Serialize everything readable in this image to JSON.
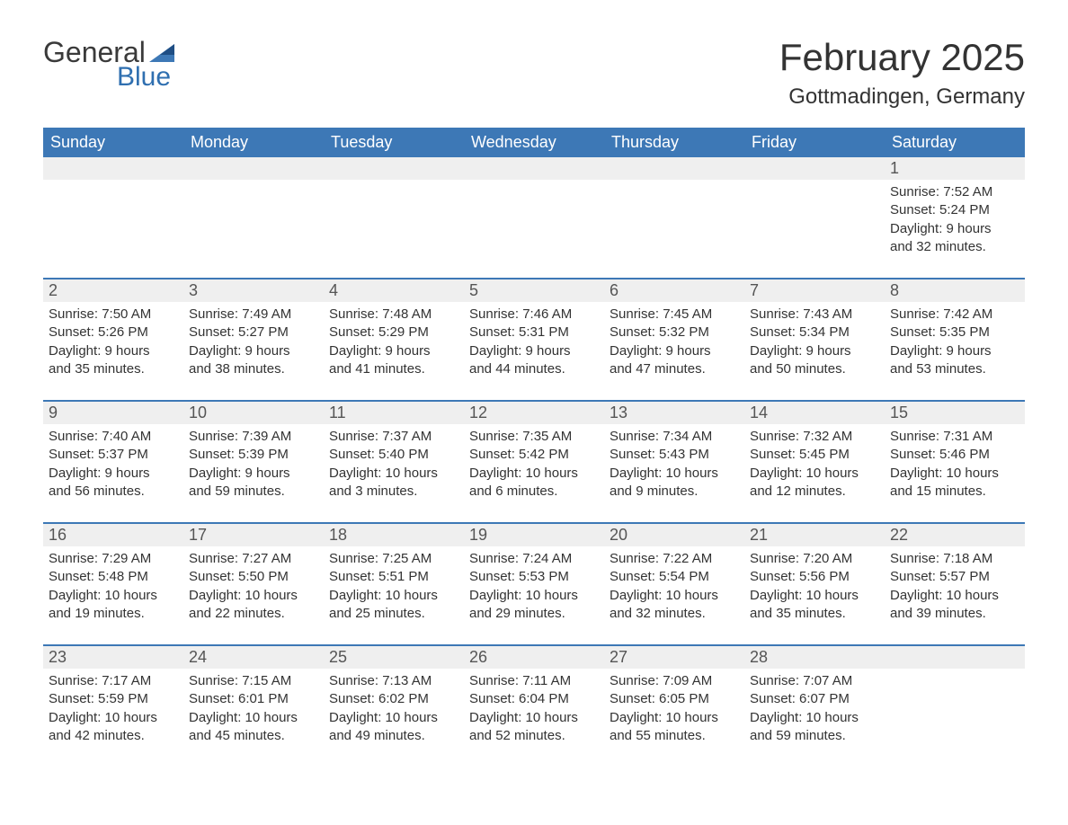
{
  "colors": {
    "brand_blue": "#3d78b6",
    "logo_blue": "#2f6fb0",
    "text": "#333333",
    "header_bg": "#3d78b6",
    "header_text": "#ffffff",
    "daynum_bg": "#efefef",
    "background": "#ffffff",
    "week_divider": "#3d78b6"
  },
  "logo": {
    "general": "General",
    "blue": "Blue"
  },
  "title": {
    "month": "February 2025",
    "location": "Gottmadingen, Germany"
  },
  "weekdays": [
    "Sunday",
    "Monday",
    "Tuesday",
    "Wednesday",
    "Thursday",
    "Friday",
    "Saturday"
  ],
  "weeks": [
    [
      null,
      null,
      null,
      null,
      null,
      null,
      {
        "n": "1",
        "sunrise": "Sunrise: 7:52 AM",
        "sunset": "Sunset: 5:24 PM",
        "daylight1": "Daylight: 9 hours",
        "daylight2": "and 32 minutes."
      }
    ],
    [
      {
        "n": "2",
        "sunrise": "Sunrise: 7:50 AM",
        "sunset": "Sunset: 5:26 PM",
        "daylight1": "Daylight: 9 hours",
        "daylight2": "and 35 minutes."
      },
      {
        "n": "3",
        "sunrise": "Sunrise: 7:49 AM",
        "sunset": "Sunset: 5:27 PM",
        "daylight1": "Daylight: 9 hours",
        "daylight2": "and 38 minutes."
      },
      {
        "n": "4",
        "sunrise": "Sunrise: 7:48 AM",
        "sunset": "Sunset: 5:29 PM",
        "daylight1": "Daylight: 9 hours",
        "daylight2": "and 41 minutes."
      },
      {
        "n": "5",
        "sunrise": "Sunrise: 7:46 AM",
        "sunset": "Sunset: 5:31 PM",
        "daylight1": "Daylight: 9 hours",
        "daylight2": "and 44 minutes."
      },
      {
        "n": "6",
        "sunrise": "Sunrise: 7:45 AM",
        "sunset": "Sunset: 5:32 PM",
        "daylight1": "Daylight: 9 hours",
        "daylight2": "and 47 minutes."
      },
      {
        "n": "7",
        "sunrise": "Sunrise: 7:43 AM",
        "sunset": "Sunset: 5:34 PM",
        "daylight1": "Daylight: 9 hours",
        "daylight2": "and 50 minutes."
      },
      {
        "n": "8",
        "sunrise": "Sunrise: 7:42 AM",
        "sunset": "Sunset: 5:35 PM",
        "daylight1": "Daylight: 9 hours",
        "daylight2": "and 53 minutes."
      }
    ],
    [
      {
        "n": "9",
        "sunrise": "Sunrise: 7:40 AM",
        "sunset": "Sunset: 5:37 PM",
        "daylight1": "Daylight: 9 hours",
        "daylight2": "and 56 minutes."
      },
      {
        "n": "10",
        "sunrise": "Sunrise: 7:39 AM",
        "sunset": "Sunset: 5:39 PM",
        "daylight1": "Daylight: 9 hours",
        "daylight2": "and 59 minutes."
      },
      {
        "n": "11",
        "sunrise": "Sunrise: 7:37 AM",
        "sunset": "Sunset: 5:40 PM",
        "daylight1": "Daylight: 10 hours",
        "daylight2": "and 3 minutes."
      },
      {
        "n": "12",
        "sunrise": "Sunrise: 7:35 AM",
        "sunset": "Sunset: 5:42 PM",
        "daylight1": "Daylight: 10 hours",
        "daylight2": "and 6 minutes."
      },
      {
        "n": "13",
        "sunrise": "Sunrise: 7:34 AM",
        "sunset": "Sunset: 5:43 PM",
        "daylight1": "Daylight: 10 hours",
        "daylight2": "and 9 minutes."
      },
      {
        "n": "14",
        "sunrise": "Sunrise: 7:32 AM",
        "sunset": "Sunset: 5:45 PM",
        "daylight1": "Daylight: 10 hours",
        "daylight2": "and 12 minutes."
      },
      {
        "n": "15",
        "sunrise": "Sunrise: 7:31 AM",
        "sunset": "Sunset: 5:46 PM",
        "daylight1": "Daylight: 10 hours",
        "daylight2": "and 15 minutes."
      }
    ],
    [
      {
        "n": "16",
        "sunrise": "Sunrise: 7:29 AM",
        "sunset": "Sunset: 5:48 PM",
        "daylight1": "Daylight: 10 hours",
        "daylight2": "and 19 minutes."
      },
      {
        "n": "17",
        "sunrise": "Sunrise: 7:27 AM",
        "sunset": "Sunset: 5:50 PM",
        "daylight1": "Daylight: 10 hours",
        "daylight2": "and 22 minutes."
      },
      {
        "n": "18",
        "sunrise": "Sunrise: 7:25 AM",
        "sunset": "Sunset: 5:51 PM",
        "daylight1": "Daylight: 10 hours",
        "daylight2": "and 25 minutes."
      },
      {
        "n": "19",
        "sunrise": "Sunrise: 7:24 AM",
        "sunset": "Sunset: 5:53 PM",
        "daylight1": "Daylight: 10 hours",
        "daylight2": "and 29 minutes."
      },
      {
        "n": "20",
        "sunrise": "Sunrise: 7:22 AM",
        "sunset": "Sunset: 5:54 PM",
        "daylight1": "Daylight: 10 hours",
        "daylight2": "and 32 minutes."
      },
      {
        "n": "21",
        "sunrise": "Sunrise: 7:20 AM",
        "sunset": "Sunset: 5:56 PM",
        "daylight1": "Daylight: 10 hours",
        "daylight2": "and 35 minutes."
      },
      {
        "n": "22",
        "sunrise": "Sunrise: 7:18 AM",
        "sunset": "Sunset: 5:57 PM",
        "daylight1": "Daylight: 10 hours",
        "daylight2": "and 39 minutes."
      }
    ],
    [
      {
        "n": "23",
        "sunrise": "Sunrise: 7:17 AM",
        "sunset": "Sunset: 5:59 PM",
        "daylight1": "Daylight: 10 hours",
        "daylight2": "and 42 minutes."
      },
      {
        "n": "24",
        "sunrise": "Sunrise: 7:15 AM",
        "sunset": "Sunset: 6:01 PM",
        "daylight1": "Daylight: 10 hours",
        "daylight2": "and 45 minutes."
      },
      {
        "n": "25",
        "sunrise": "Sunrise: 7:13 AM",
        "sunset": "Sunset: 6:02 PM",
        "daylight1": "Daylight: 10 hours",
        "daylight2": "and 49 minutes."
      },
      {
        "n": "26",
        "sunrise": "Sunrise: 7:11 AM",
        "sunset": "Sunset: 6:04 PM",
        "daylight1": "Daylight: 10 hours",
        "daylight2": "and 52 minutes."
      },
      {
        "n": "27",
        "sunrise": "Sunrise: 7:09 AM",
        "sunset": "Sunset: 6:05 PM",
        "daylight1": "Daylight: 10 hours",
        "daylight2": "and 55 minutes."
      },
      {
        "n": "28",
        "sunrise": "Sunrise: 7:07 AM",
        "sunset": "Sunset: 6:07 PM",
        "daylight1": "Daylight: 10 hours",
        "daylight2": "and 59 minutes."
      },
      null
    ]
  ]
}
